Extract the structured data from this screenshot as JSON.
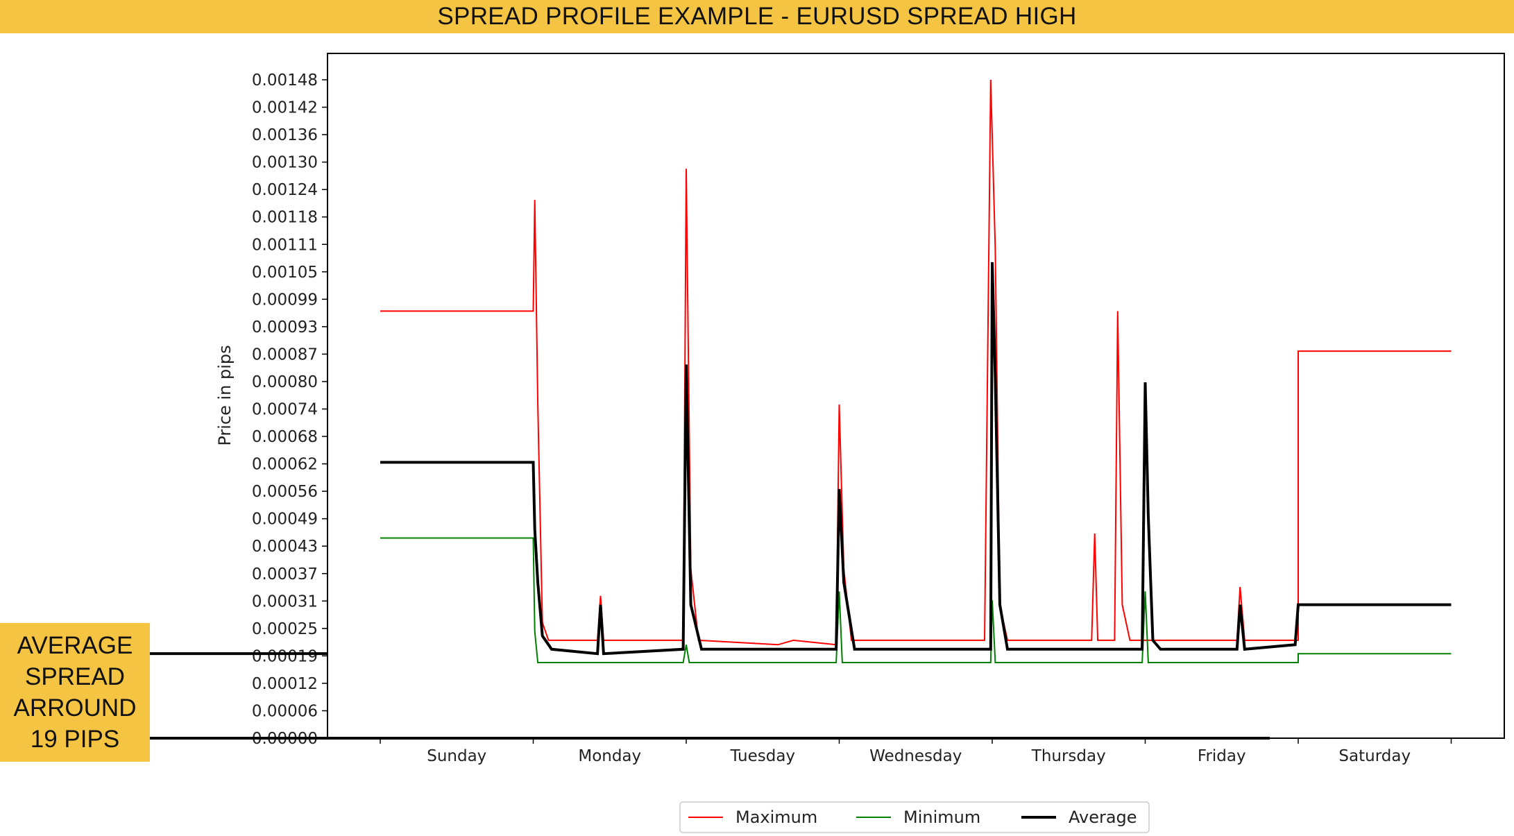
{
  "banner": {
    "title": "SPREAD PROFILE EXAMPLE - EURUSD SPREAD HIGH"
  },
  "callout": {
    "text": "AVERAGE\nSPREAD\nARROUND\n19 PIPS"
  },
  "colors": {
    "banner": "#f5c443",
    "maximum": "#ff0000",
    "minimum": "#008000",
    "average": "#000000"
  },
  "chart_data": {
    "type": "line",
    "title": "",
    "xlabel": "",
    "ylabel": "Price in pips",
    "grid": false,
    "legend_placement": "bottom-center",
    "ylim": [
      0,
      0.00154
    ],
    "yticks": [
      "0.00148",
      "0.00142",
      "0.00136",
      "0.00130",
      "0.00124",
      "0.00118",
      "0.00111",
      "0.00105",
      "0.00099",
      "0.00093",
      "0.00087",
      "0.00080",
      "0.00074",
      "0.00068",
      "0.00062",
      "0.00056",
      "0.00049",
      "0.00043",
      "0.00037",
      "0.00031",
      "0.00025",
      "0.00019",
      "0.00012",
      "0.00006",
      "0.00000"
    ],
    "categories": [
      "Sunday",
      "Monday",
      "Tuesday",
      "Wednesday",
      "Thursday",
      "Friday",
      "Saturday"
    ],
    "reference_line": {
      "value": 0.00019
    },
    "series": [
      {
        "name": "Maximum",
        "color": "#ff0000",
        "points": [
          [
            0,
            0.00096
          ],
          [
            1.0,
            0.00096
          ],
          [
            1.01,
            0.00121
          ],
          [
            1.03,
            0.00075
          ],
          [
            1.06,
            0.00026
          ],
          [
            1.1,
            0.00022
          ],
          [
            1.42,
            0.00022
          ],
          [
            1.44,
            0.00032
          ],
          [
            1.46,
            0.00022
          ],
          [
            1.98,
            0.00022
          ],
          [
            2.0,
            0.00128
          ],
          [
            2.03,
            0.00038
          ],
          [
            2.08,
            0.00022
          ],
          [
            2.6,
            0.00021
          ],
          [
            2.7,
            0.00022
          ],
          [
            2.98,
            0.00021
          ],
          [
            3.0,
            0.00075
          ],
          [
            3.03,
            0.00038
          ],
          [
            3.08,
            0.00022
          ],
          [
            3.95,
            0.00022
          ],
          [
            3.99,
            0.00148
          ],
          [
            4.02,
            0.0011
          ],
          [
            4.05,
            0.0003
          ],
          [
            4.1,
            0.00022
          ],
          [
            4.65,
            0.00022
          ],
          [
            4.67,
            0.00046
          ],
          [
            4.69,
            0.00022
          ],
          [
            4.8,
            0.00022
          ],
          [
            4.82,
            0.00096
          ],
          [
            4.85,
            0.0003
          ],
          [
            4.9,
            0.00022
          ],
          [
            5.6,
            0.00022
          ],
          [
            5.62,
            0.00034
          ],
          [
            5.65,
            0.00022
          ],
          [
            5.9,
            0.00022
          ],
          [
            6.0,
            0.00022
          ],
          [
            6.0,
            0.00087
          ],
          [
            7.0,
            0.00087
          ]
        ]
      },
      {
        "name": "Minimum",
        "color": "#008000",
        "points": [
          [
            0,
            0.00045
          ],
          [
            1.0,
            0.00045
          ],
          [
            1.01,
            0.00024
          ],
          [
            1.03,
            0.00017
          ],
          [
            1.98,
            0.00017
          ],
          [
            2.0,
            0.00021
          ],
          [
            2.02,
            0.00017
          ],
          [
            2.98,
            0.00017
          ],
          [
            3.0,
            0.00033
          ],
          [
            3.02,
            0.00017
          ],
          [
            3.99,
            0.00017
          ],
          [
            4.0,
            0.00031
          ],
          [
            4.02,
            0.00017
          ],
          [
            4.98,
            0.00017
          ],
          [
            5.0,
            0.00033
          ],
          [
            5.02,
            0.00017
          ],
          [
            6.0,
            0.00017
          ],
          [
            6.0,
            0.00019
          ],
          [
            7.0,
            0.00019
          ]
        ]
      },
      {
        "name": "Average",
        "color": "#000000",
        "points": [
          [
            0,
            0.00062
          ],
          [
            1.0,
            0.00062
          ],
          [
            1.01,
            0.00047
          ],
          [
            1.03,
            0.00035
          ],
          [
            1.06,
            0.00023
          ],
          [
            1.12,
            0.0002
          ],
          [
            1.42,
            0.00019
          ],
          [
            1.44,
            0.0003
          ],
          [
            1.46,
            0.00019
          ],
          [
            1.98,
            0.0002
          ],
          [
            2.0,
            0.00084
          ],
          [
            2.03,
            0.0003
          ],
          [
            2.1,
            0.0002
          ],
          [
            2.98,
            0.0002
          ],
          [
            3.0,
            0.00056
          ],
          [
            3.03,
            0.00035
          ],
          [
            3.1,
            0.0002
          ],
          [
            3.99,
            0.0002
          ],
          [
            4.0,
            0.00107
          ],
          [
            4.02,
            0.00081
          ],
          [
            4.05,
            0.0003
          ],
          [
            4.1,
            0.0002
          ],
          [
            4.98,
            0.0002
          ],
          [
            5.0,
            0.0008
          ],
          [
            5.02,
            0.0005
          ],
          [
            5.05,
            0.00022
          ],
          [
            5.1,
            0.0002
          ],
          [
            5.6,
            0.0002
          ],
          [
            5.62,
            0.0003
          ],
          [
            5.65,
            0.0002
          ],
          [
            5.98,
            0.00021
          ],
          [
            6.0,
            0.0003
          ],
          [
            7.0,
            0.0003
          ]
        ]
      }
    ]
  }
}
